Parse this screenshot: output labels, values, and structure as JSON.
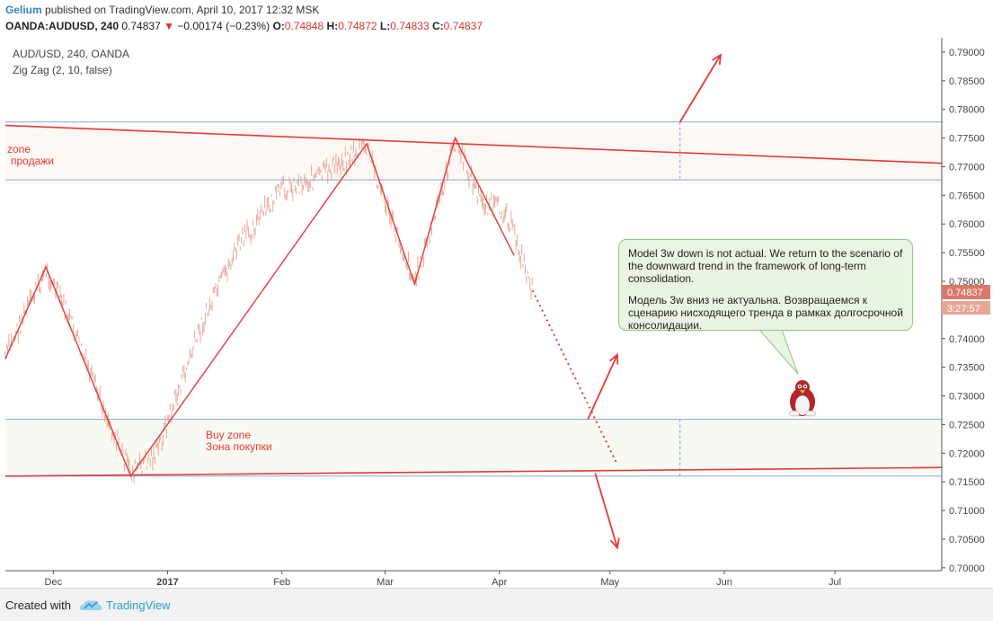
{
  "header": {
    "author": "Gelium",
    "published_text": "published on TradingView.com, April 10, 2017 12:32 MSK",
    "symbol": "OANDA:AUDUSD, 240",
    "last": "0.74837",
    "change": "−0.00174 (−0.23%)",
    "open_label": "O:",
    "open": "0.74848",
    "high_label": "H:",
    "high": "0.74872",
    "low_label": "L:",
    "low": "0.74833",
    "close_label": "C:",
    "close": "0.74837",
    "change_color": "#d9362e"
  },
  "legend": {
    "title": "AUD/USD, 240, OANDA",
    "indicator": "Zig Zag (2, 10, false)"
  },
  "annotations": {
    "sell_zone": [
      "zone",
      "продажи"
    ],
    "buy_zone": [
      "Buy zone",
      "Зона покупки"
    ],
    "callout_en": "Model 3w down is not actual. We return to the scenario of the downward trend in the framework of long-term consolidation.",
    "callout_ru": "Модель 3w вниз не актуальна. Возвращаемся к сценарию нисходящего тренда в рамках долгосрочной консолидации.",
    "price_tag": "0.74837",
    "countdown_tag": "3:27:57"
  },
  "footer": {
    "created_with": "Created with",
    "brand": "TradingView"
  },
  "chart_data": {
    "type": "line",
    "title": "AUD/USD, 240, OANDA",
    "x_ticks": [
      "Dec",
      "2017",
      "Feb",
      "Mar",
      "Apr",
      "May",
      "Jun",
      "Jul"
    ],
    "y_ticks": [
      "0.79000",
      "0.78500",
      "0.78000",
      "0.77500",
      "0.77000",
      "0.76500",
      "0.76000",
      "0.75500",
      "0.75000",
      "0.74500",
      "0.74000",
      "0.73500",
      "0.73000",
      "0.72500",
      "0.72000",
      "0.71500",
      "0.71000",
      "0.70500",
      "0.70000"
    ],
    "ylim": [
      0.6995,
      0.7925
    ],
    "series": [
      {
        "name": "Zig Zag (2, 10, false)",
        "x": [
          "2016-11-18",
          "2016-11-29",
          "2016-12-22",
          "2017-02-24",
          "2017-03-09",
          "2017-03-20",
          "2017-04-05"
        ],
        "y": [
          0.7365,
          0.7525,
          0.716,
          0.774,
          0.7495,
          0.775,
          0.7545
        ]
      }
    ],
    "price_path": {
      "x": [
        "2016-11-18",
        "2016-11-29",
        "2016-12-05",
        "2016-12-12",
        "2016-12-22",
        "2016-12-29",
        "2017-01-10",
        "2017-01-20",
        "2017-02-01",
        "2017-02-10",
        "2017-02-20",
        "2017-02-24",
        "2017-03-02",
        "2017-03-09",
        "2017-03-14",
        "2017-03-20",
        "2017-03-27",
        "2017-04-03",
        "2017-04-10"
      ],
      "y": [
        0.737,
        0.752,
        0.744,
        0.732,
        0.7165,
        0.72,
        0.742,
        0.756,
        0.766,
        0.768,
        0.772,
        0.7735,
        0.762,
        0.75,
        0.76,
        0.7745,
        0.764,
        0.762,
        0.7484
      ]
    },
    "trend_lines": [
      {
        "name": "resistance",
        "x": [
          "2016-11-18",
          "2017-07-30"
        ],
        "y": [
          0.7772,
          0.7706
        ],
        "color": "#e53935"
      },
      {
        "name": "support",
        "x": [
          "2016-11-18",
          "2017-07-30"
        ],
        "y": [
          0.716,
          0.7175
        ],
        "color": "#e53935"
      }
    ],
    "zones": [
      {
        "name": "sell",
        "y": [
          0.7677,
          0.7778
        ]
      },
      {
        "name": "buy",
        "y": [
          0.716,
          0.7259
        ]
      }
    ],
    "forecast": {
      "dotted": {
        "x": [
          "2017-04-10",
          "2017-05-03"
        ],
        "y": [
          0.7484,
          0.718
        ]
      },
      "arrows": [
        {
          "x": [
            "2017-04-25",
            "2017-05-03"
          ],
          "y": [
            0.7259,
            0.7372
          ]
        },
        {
          "x": [
            "2017-05-20",
            "2017-05-31"
          ],
          "y": [
            0.7778,
            0.7895
          ]
        },
        {
          "x": [
            "2017-04-27",
            "2017-05-03"
          ],
          "y": [
            0.7165,
            0.7035
          ]
        }
      ]
    },
    "colors": {
      "candles": "#e8a99a",
      "zigzag": "#e53935",
      "zone_line": "#8aa7d8"
    }
  }
}
